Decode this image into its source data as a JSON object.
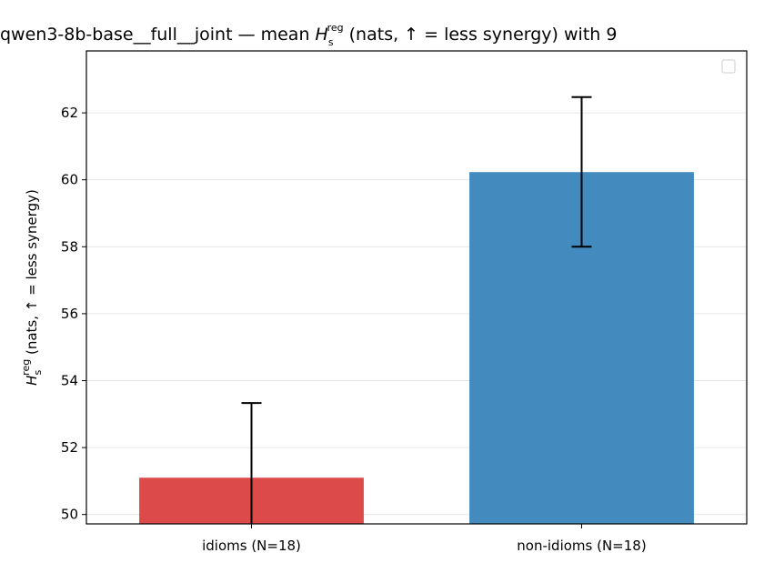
{
  "chart_data": {
    "type": "bar",
    "title": {
      "prefix": "qwen3-8b-base__full__joint — mean ",
      "sym": "H",
      "sub": "s",
      "sup": "reg",
      "suffix": " (nats, ↑ = less synergy) with 9"
    },
    "ylabel": {
      "sym": "H",
      "sub": "s",
      "sup": "reg",
      "suffix": " (nats, ↑ = less synergy)"
    },
    "categories": [
      "idioms (N=18)",
      "non-idioms (N=18)"
    ],
    "values": [
      51.1,
      60.23
    ],
    "error_low": [
      49.3,
      58.0
    ],
    "error_high": [
      53.33,
      62.47
    ],
    "colors": [
      "#dc4a4a",
      "#438bbf"
    ],
    "ylim": [
      49.72,
      63.85
    ],
    "yticks": [
      50,
      52,
      54,
      56,
      58,
      60,
      62
    ],
    "grid": true,
    "legend": "top-right, empty"
  }
}
